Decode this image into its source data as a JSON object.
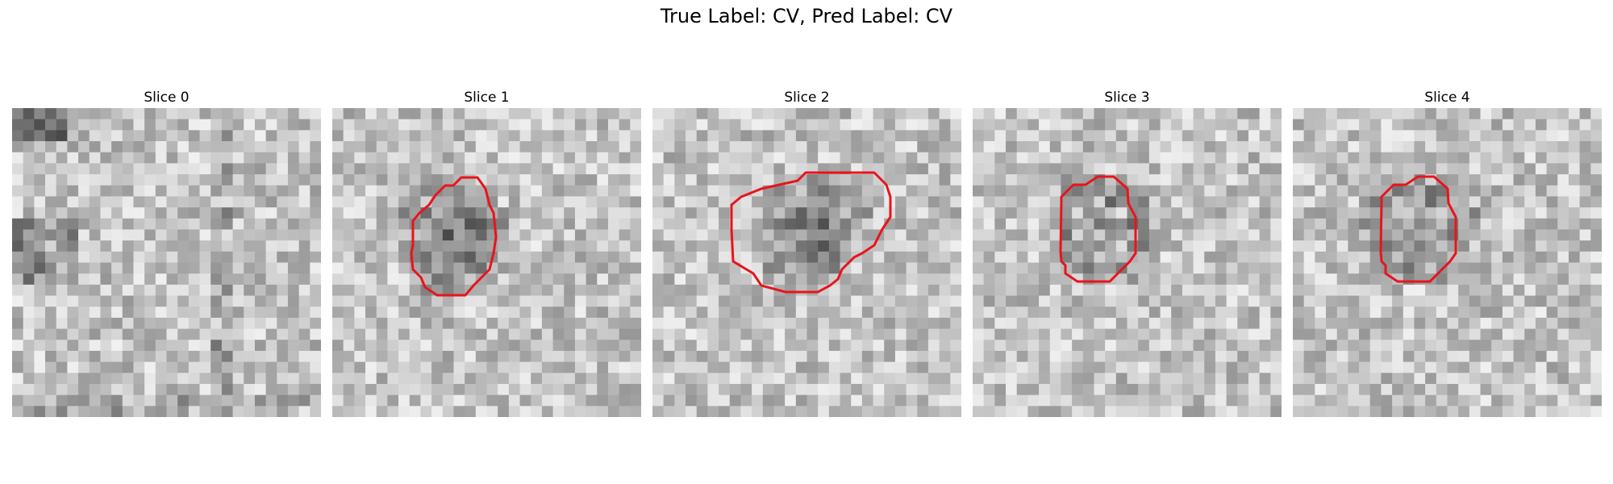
{
  "figure": {
    "title": "True Label: CV, Pred Label: CV",
    "contour_color": "#e8141c"
  },
  "slices": [
    {
      "label": "Slice 0",
      "has_contour": false
    },
    {
      "label": "Slice 1",
      "has_contour": true
    },
    {
      "label": "Slice 2",
      "has_contour": true
    },
    {
      "label": "Slice 3",
      "has_contour": true
    },
    {
      "label": "Slice 4",
      "has_contour": true
    }
  ]
}
